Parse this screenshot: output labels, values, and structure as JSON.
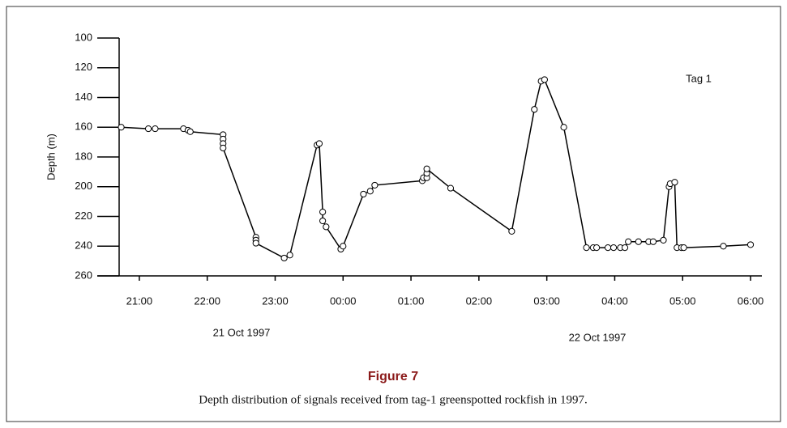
{
  "chart_data": {
    "type": "line",
    "y_label": "Depth (m)",
    "annotation": "Tag 1",
    "date_labels": [
      "21 Oct 1997",
      "22 Oct 1997"
    ],
    "figure_label": "Figure 7",
    "caption": "Depth distribution of signals received from tag-1 greenspotted rockfish in 1997.",
    "x": [
      "20:44",
      "21:08",
      "21:14",
      "21:39",
      "21:43",
      "21:45",
      "22:14",
      "22:14",
      "22:14",
      "22:14",
      "22:43",
      "22:43",
      "22:43",
      "23:08",
      "23:13",
      "23:37",
      "23:39",
      "23:42",
      "23:42",
      "23:45",
      "23:58",
      "00:00",
      "00:18",
      "00:24",
      "00:28",
      "01:10",
      "01:11",
      "01:14",
      "01:14",
      "01:14",
      "01:35",
      "02:29",
      "02:49",
      "02:55",
      "02:58",
      "03:15",
      "03:35",
      "03:41",
      "03:44",
      "03:54",
      "03:59",
      "04:05",
      "04:09",
      "04:12",
      "04:21",
      "04:30",
      "04:34",
      "04:43",
      "04:48",
      "04:49",
      "04:53",
      "04:55",
      "04:59",
      "05:01",
      "05:36",
      "06:00"
    ],
    "series": [
      {
        "color": "#000000",
        "values": [
          160,
          161,
          161,
          161,
          162,
          163,
          165,
          168,
          171,
          174,
          234,
          236,
          238,
          248,
          246,
          172,
          171,
          217,
          223,
          227,
          242,
          240,
          205,
          203,
          199,
          196,
          194,
          194,
          191,
          188,
          201,
          230,
          148,
          129,
          128,
          160,
          241,
          241,
          241,
          241,
          241,
          241,
          241,
          237,
          237,
          237,
          237,
          236,
          200,
          198,
          197,
          241,
          241,
          241,
          240,
          239
        ]
      }
    ],
    "xlim": [
      "20:30",
      "06:10"
    ],
    "xticks": [
      "21:00",
      "22:00",
      "23:00",
      "00:00",
      "01:00",
      "02:00",
      "03:00",
      "04:00",
      "05:00",
      "06:00"
    ],
    "ylim": [
      100,
      260
    ],
    "yticks": [
      100,
      120,
      140,
      160,
      180,
      200,
      220,
      240,
      260
    ],
    "y_inverted": true,
    "grid": false
  }
}
